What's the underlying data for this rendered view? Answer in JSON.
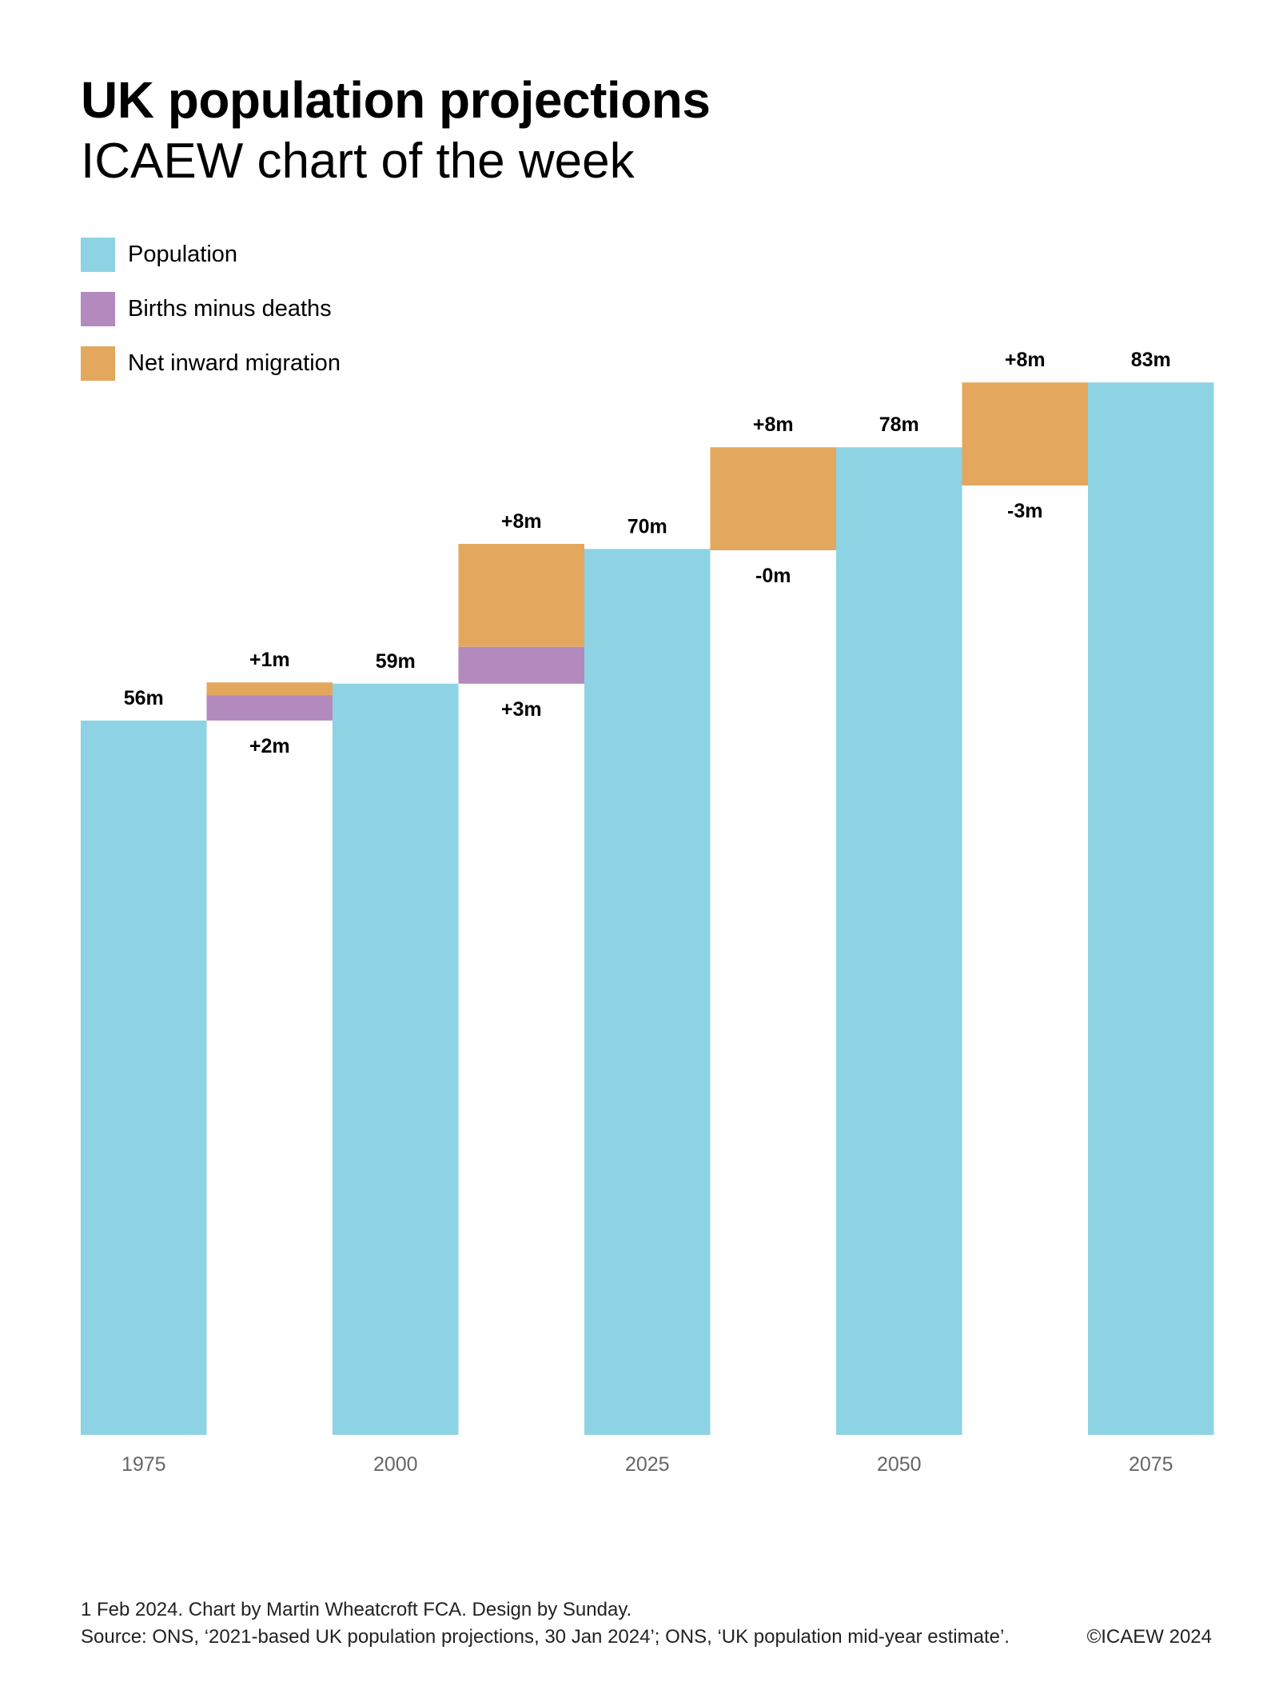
{
  "header": {
    "title": "UK population projections",
    "subtitle": "ICAEW chart of the week"
  },
  "legend": [
    {
      "label": "Population",
      "color": "#8dd3e3"
    },
    {
      "label": "Births minus deaths",
      "color": "#b38abd"
    },
    {
      "label": "Net inward migration",
      "color": "#e4a75e"
    }
  ],
  "footer": {
    "line1": "1 Feb 2024.   Chart by Martin Wheatcroft FCA. Design by Sunday.",
    "source": "Source: ONS, ‘2021-based UK population projections, 30 Jan 2024’; ONS, ‘UK population mid-year estimate’.",
    "copyright": "©ICAEW 2024"
  },
  "chart_data": {
    "type": "waterfall",
    "title": "UK population projections",
    "subtitle": "ICAEW chart of the week",
    "unit": "millions",
    "ylim": [
      0,
      83
    ],
    "categories": [
      "1975",
      "",
      "2000",
      "",
      "2025",
      "",
      "2050",
      "",
      "2075"
    ],
    "x_tick_labels": [
      "1975",
      "2000",
      "2025",
      "2050",
      "2075"
    ],
    "population": [
      {
        "year": "1975",
        "value": 56.2,
        "label": "56m"
      },
      {
        "year": "2000",
        "value": 59.1,
        "label": "59m"
      },
      {
        "year": "2025",
        "value": 69.7,
        "label": "70m"
      },
      {
        "year": "2050",
        "value": 77.7,
        "label": "78m"
      },
      {
        "year": "2075",
        "value": 82.8,
        "label": "83m"
      }
    ],
    "changes": [
      {
        "period": "1975-2000",
        "births_minus_deaths": 2.0,
        "bmd_label": "+2m",
        "net_migration": 1.0,
        "mig_label": "+1m"
      },
      {
        "period": "2000-2025",
        "births_minus_deaths": 2.9,
        "bmd_label": "+3m",
        "net_migration": 8.1,
        "mig_label": "+8m"
      },
      {
        "period": "2025-2050",
        "births_minus_deaths": -0.1,
        "bmd_label": "-0m",
        "net_migration": 8.1,
        "mig_label": "+8m"
      },
      {
        "period": "2050-2075",
        "births_minus_deaths": -3.0,
        "bmd_label": "-3m",
        "net_migration": 8.1,
        "mig_label": "+8m"
      }
    ],
    "colors": {
      "population": "#8dd3e3",
      "births_minus_deaths": "#b38abd",
      "net_migration": "#e4a75e",
      "axis_label": "#666666"
    }
  }
}
